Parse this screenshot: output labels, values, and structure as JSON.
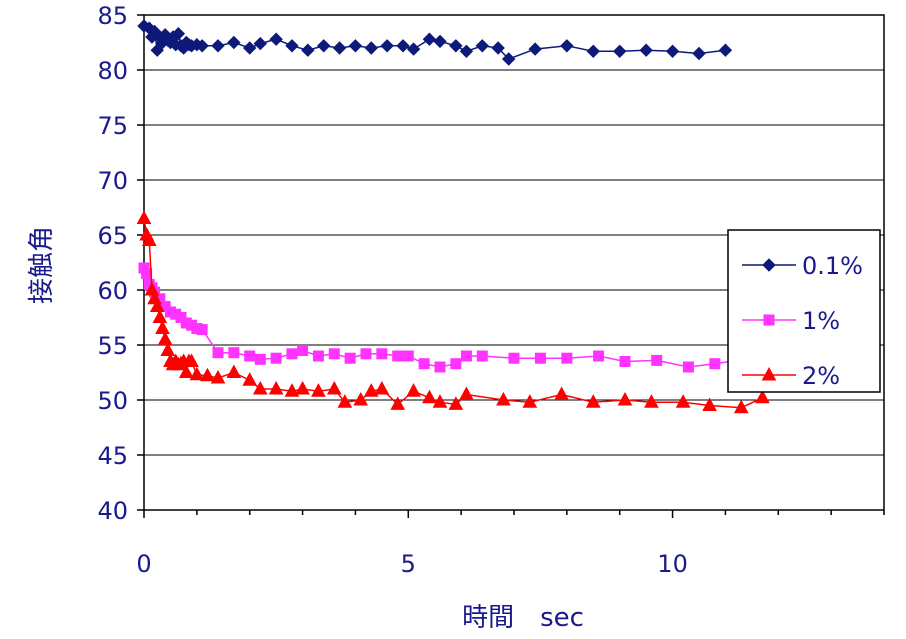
{
  "chart_data": {
    "type": "line",
    "xlabel": "時間　sec",
    "ylabel": "接触角",
    "xlim": [
      0,
      14
    ],
    "ylim": [
      40,
      85
    ],
    "x_ticks": [
      0,
      5,
      10
    ],
    "y_ticks": [
      40,
      45,
      50,
      55,
      60,
      65,
      70,
      75,
      80,
      85
    ],
    "grid": "horizontal",
    "legend": "right",
    "series": [
      {
        "name": "0.1%",
        "color": "#0d1a7a",
        "marker": "diamond",
        "points": [
          [
            0,
            84
          ],
          [
            0.1,
            83.8
          ],
          [
            0.15,
            83
          ],
          [
            0.2,
            83.5
          ],
          [
            0.25,
            81.8
          ],
          [
            0.3,
            83
          ],
          [
            0.35,
            82.5
          ],
          [
            0.4,
            83.2
          ],
          [
            0.45,
            82.7
          ],
          [
            0.5,
            82.5
          ],
          [
            0.55,
            83
          ],
          [
            0.6,
            82.3
          ],
          [
            0.65,
            83.3
          ],
          [
            0.7,
            82.2
          ],
          [
            0.75,
            82
          ],
          [
            0.8,
            82.5
          ],
          [
            0.85,
            82.3
          ],
          [
            0.9,
            82.2
          ],
          [
            1.0,
            82.3
          ],
          [
            1.1,
            82.2
          ],
          [
            1.4,
            82.2
          ],
          [
            1.7,
            82.5
          ],
          [
            2.0,
            82
          ],
          [
            2.2,
            82.4
          ],
          [
            2.5,
            82.8
          ],
          [
            2.8,
            82.2
          ],
          [
            3.1,
            81.8
          ],
          [
            3.4,
            82.2
          ],
          [
            3.7,
            82
          ],
          [
            4.0,
            82.2
          ],
          [
            4.3,
            82
          ],
          [
            4.6,
            82.2
          ],
          [
            4.9,
            82.2
          ],
          [
            5.1,
            81.9
          ],
          [
            5.4,
            82.8
          ],
          [
            5.6,
            82.6
          ],
          [
            5.9,
            82.2
          ],
          [
            6.1,
            81.7
          ],
          [
            6.4,
            82.2
          ],
          [
            6.7,
            82
          ],
          [
            6.9,
            81
          ],
          [
            7.4,
            81.9
          ],
          [
            8.0,
            82.2
          ],
          [
            8.5,
            81.7
          ],
          [
            9.0,
            81.7
          ],
          [
            9.5,
            81.8
          ],
          [
            10.0,
            81.7
          ],
          [
            10.5,
            81.5
          ],
          [
            11.0,
            81.8
          ]
        ]
      },
      {
        "name": "1%",
        "color": "#ff33ff",
        "marker": "square",
        "points": [
          [
            0,
            62
          ],
          [
            0.05,
            61.5
          ],
          [
            0.1,
            60.5
          ],
          [
            0.15,
            60.2
          ],
          [
            0.2,
            59.8
          ],
          [
            0.3,
            59.2
          ],
          [
            0.4,
            58.5
          ],
          [
            0.5,
            58
          ],
          [
            0.6,
            57.8
          ],
          [
            0.7,
            57.5
          ],
          [
            0.8,
            57
          ],
          [
            0.9,
            56.8
          ],
          [
            1.0,
            56.5
          ],
          [
            1.1,
            56.4
          ],
          [
            1.4,
            54.3
          ],
          [
            1.7,
            54.3
          ],
          [
            2.0,
            54
          ],
          [
            2.2,
            53.7
          ],
          [
            2.5,
            53.8
          ],
          [
            2.8,
            54.2
          ],
          [
            3.0,
            54.5
          ],
          [
            3.3,
            54
          ],
          [
            3.6,
            54.2
          ],
          [
            3.9,
            53.8
          ],
          [
            4.2,
            54.2
          ],
          [
            4.5,
            54.2
          ],
          [
            4.8,
            54
          ],
          [
            5.0,
            54
          ],
          [
            5.3,
            53.3
          ],
          [
            5.6,
            53
          ],
          [
            5.9,
            53.3
          ],
          [
            6.1,
            54
          ],
          [
            6.4,
            54
          ],
          [
            7.0,
            53.8
          ],
          [
            7.5,
            53.8
          ],
          [
            8.0,
            53.8
          ],
          [
            8.6,
            54
          ],
          [
            9.1,
            53.5
          ],
          [
            9.7,
            53.6
          ],
          [
            10.3,
            53
          ],
          [
            10.8,
            53.3
          ],
          [
            11.5,
            53.8
          ]
        ]
      },
      {
        "name": "2%",
        "color": "#ff0000",
        "marker": "triangle",
        "points": [
          [
            0,
            66.5
          ],
          [
            0.05,
            65
          ],
          [
            0.1,
            64.5
          ],
          [
            0.15,
            60
          ],
          [
            0.2,
            59.2
          ],
          [
            0.25,
            58.5
          ],
          [
            0.3,
            57.5
          ],
          [
            0.35,
            56.5
          ],
          [
            0.4,
            55.5
          ],
          [
            0.45,
            54.5
          ],
          [
            0.5,
            53.5
          ],
          [
            0.55,
            53.2
          ],
          [
            0.6,
            53.5
          ],
          [
            0.65,
            53.2
          ],
          [
            0.7,
            53.3
          ],
          [
            0.75,
            53.5
          ],
          [
            0.8,
            52.5
          ],
          [
            0.85,
            53.5
          ],
          [
            0.9,
            53.5
          ],
          [
            1.0,
            52.3
          ],
          [
            1.2,
            52.2
          ],
          [
            1.4,
            52
          ],
          [
            1.7,
            52.5
          ],
          [
            2.0,
            51.8
          ],
          [
            2.2,
            51
          ],
          [
            2.5,
            51
          ],
          [
            2.8,
            50.8
          ],
          [
            3.0,
            51
          ],
          [
            3.3,
            50.8
          ],
          [
            3.6,
            51
          ],
          [
            3.8,
            49.8
          ],
          [
            4.1,
            50
          ],
          [
            4.3,
            50.8
          ],
          [
            4.5,
            51
          ],
          [
            4.8,
            49.6
          ],
          [
            5.1,
            50.8
          ],
          [
            5.4,
            50.2
          ],
          [
            5.6,
            49.8
          ],
          [
            5.9,
            49.6
          ],
          [
            6.1,
            50.5
          ],
          [
            6.8,
            50
          ],
          [
            7.3,
            49.8
          ],
          [
            7.9,
            50.5
          ],
          [
            8.5,
            49.8
          ],
          [
            9.1,
            50
          ],
          [
            9.6,
            49.8
          ],
          [
            10.2,
            49.8
          ],
          [
            10.7,
            49.5
          ],
          [
            11.3,
            49.3
          ],
          [
            11.7,
            50.2
          ]
        ]
      }
    ]
  }
}
